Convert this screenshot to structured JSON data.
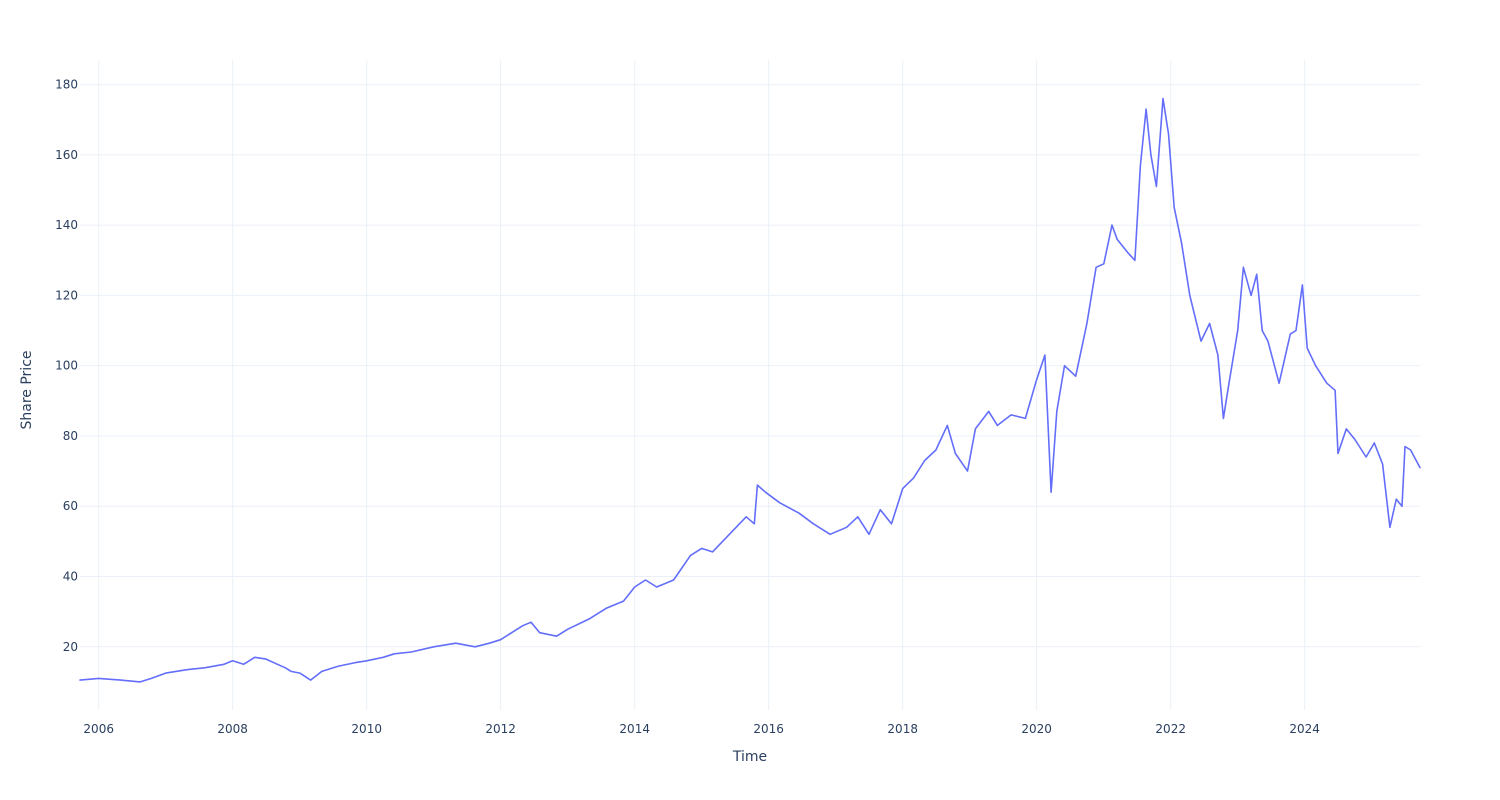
{
  "chart_data": {
    "type": "line",
    "title": "",
    "xlabel": "Time",
    "ylabel": "Share Price",
    "xlim": [
      "2005-09-21",
      "2025-09-21"
    ],
    "ylim": [
      2,
      187
    ],
    "grid": true,
    "legend": "none",
    "x_ticks": [
      {
        "value": "2006-01-01",
        "label": "2006"
      },
      {
        "value": "2008-01-01",
        "label": "2008"
      },
      {
        "value": "2010-01-01",
        "label": "2010"
      },
      {
        "value": "2012-01-01",
        "label": "2012"
      },
      {
        "value": "2014-01-01",
        "label": "2014"
      },
      {
        "value": "2016-01-01",
        "label": "2016"
      },
      {
        "value": "2018-01-01",
        "label": "2018"
      },
      {
        "value": "2020-01-01",
        "label": "2020"
      },
      {
        "value": "2022-01-01",
        "label": "2022"
      },
      {
        "value": "2024-01-01",
        "label": "2024"
      }
    ],
    "y_ticks": [
      {
        "value": 20,
        "label": "20"
      },
      {
        "value": 40,
        "label": "40"
      },
      {
        "value": 60,
        "label": "60"
      },
      {
        "value": 80,
        "label": "80"
      },
      {
        "value": 100,
        "label": "100"
      },
      {
        "value": 120,
        "label": "120"
      },
      {
        "value": 140,
        "label": "140"
      },
      {
        "value": 160,
        "label": "160"
      },
      {
        "value": 180,
        "label": "180"
      }
    ],
    "series": [
      {
        "color": "#636efa",
        "x": [
          "2005-09-21",
          "2006-01-01",
          "2006-05-01",
          "2006-08-15",
          "2006-10-15",
          "2007-01-01",
          "2007-05-01",
          "2007-08-01",
          "2007-11-15",
          "2008-01-01",
          "2008-03-01",
          "2008-05-01",
          "2008-07-01",
          "2008-09-01",
          "2008-10-15",
          "2008-11-15",
          "2009-01-01",
          "2009-03-01",
          "2009-05-01",
          "2009-08-01",
          "2009-11-01",
          "2010-01-01",
          "2010-04-01",
          "2010-06-01",
          "2010-09-01",
          "2011-01-01",
          "2011-05-01",
          "2011-08-15",
          "2011-11-01",
          "2012-01-01",
          "2012-03-01",
          "2012-05-01",
          "2012-06-15",
          "2012-08-01",
          "2012-11-01",
          "2013-01-01",
          "2013-05-01",
          "2013-08-01",
          "2013-11-01",
          "2014-01-01",
          "2014-03-01",
          "2014-05-01",
          "2014-08-01",
          "2014-11-01",
          "2015-01-01",
          "2015-03-01",
          "2015-06-01",
          "2015-09-01",
          "2015-10-15",
          "2015-11-01",
          "2015-12-15",
          "2016-03-01",
          "2016-06-15",
          "2016-09-01",
          "2016-12-01",
          "2017-03-01",
          "2017-05-01",
          "2017-07-01",
          "2017-09-01",
          "2017-11-01",
          "2018-01-01",
          "2018-03-01",
          "2018-05-01",
          "2018-07-01",
          "2018-09-01",
          "2018-10-15",
          "2018-12-20",
          "2019-02-01",
          "2019-04-15",
          "2019-06-01",
          "2019-08-15",
          "2019-11-01",
          "2020-01-01",
          "2020-02-15",
          "2020-03-20",
          "2020-04-20",
          "2020-06-01",
          "2020-08-01",
          "2020-10-01",
          "2020-11-20",
          "2021-01-01",
          "2021-02-15",
          "2021-03-15",
          "2021-05-15",
          "2021-06-20",
          "2021-07-20",
          "2021-08-20",
          "2021-09-15",
          "2021-10-15",
          "2021-11-20",
          "2021-12-20",
          "2022-01-20",
          "2022-03-01",
          "2022-04-15",
          "2022-06-15",
          "2022-08-01",
          "2022-09-15",
          "2022-10-15",
          "2022-11-15",
          "2023-01-01",
          "2023-02-01",
          "2023-03-15",
          "2023-04-15",
          "2023-05-15",
          "2023-06-15",
          "2023-08-15",
          "2023-10-15",
          "2023-11-15",
          "2023-12-20",
          "2024-01-15",
          "2024-03-01",
          "2024-05-01",
          "2024-06-15",
          "2024-07-01",
          "2024-08-15",
          "2024-10-01",
          "2024-12-01",
          "2025-01-15",
          "2025-03-01",
          "2025-04-10",
          "2025-05-15",
          "2025-06-15",
          "2025-07-01",
          "2025-08-01",
          "2025-09-21"
        ],
        "y": [
          10.5,
          11.0,
          10.5,
          10.0,
          11.0,
          12.5,
          13.5,
          14.0,
          15.0,
          16.0,
          15.0,
          17.0,
          16.5,
          15.0,
          14.0,
          13.0,
          12.5,
          10.5,
          13.0,
          14.5,
          15.5,
          16.0,
          17.0,
          18.0,
          18.5,
          20.0,
          21.0,
          20.0,
          21.0,
          22.0,
          24.0,
          26.0,
          27.0,
          24.0,
          23.0,
          25.0,
          28.0,
          31.0,
          33.0,
          37.0,
          39.0,
          37.0,
          39.0,
          46.0,
          48.0,
          47.0,
          52.0,
          57.0,
          55.0,
          66.0,
          64.0,
          61.0,
          58.0,
          55.0,
          52.0,
          54.0,
          57.0,
          52.0,
          59.0,
          55.0,
          65.0,
          68.0,
          73.0,
          76.0,
          83.0,
          75.0,
          70.0,
          82.0,
          87.0,
          83.0,
          86.0,
          85.0,
          96.0,
          103.0,
          64.0,
          87.0,
          100.0,
          97.0,
          112.0,
          128.0,
          129.0,
          140.0,
          136.0,
          132.0,
          130.0,
          157.0,
          173.0,
          160.0,
          151.0,
          176.0,
          166.0,
          145.0,
          135.0,
          120.0,
          107.0,
          112.0,
          103.0,
          85.0,
          95.0,
          110.0,
          128.0,
          120.0,
          126.0,
          110.0,
          107.0,
          95.0,
          109.0,
          110.0,
          123.0,
          105.0,
          100.0,
          95.0,
          93.0,
          75.0,
          82.0,
          79.0,
          74.0,
          78.0,
          72.0,
          54.0,
          62.0,
          60.0,
          77.0,
          76.0,
          71.0
        ]
      }
    ]
  }
}
